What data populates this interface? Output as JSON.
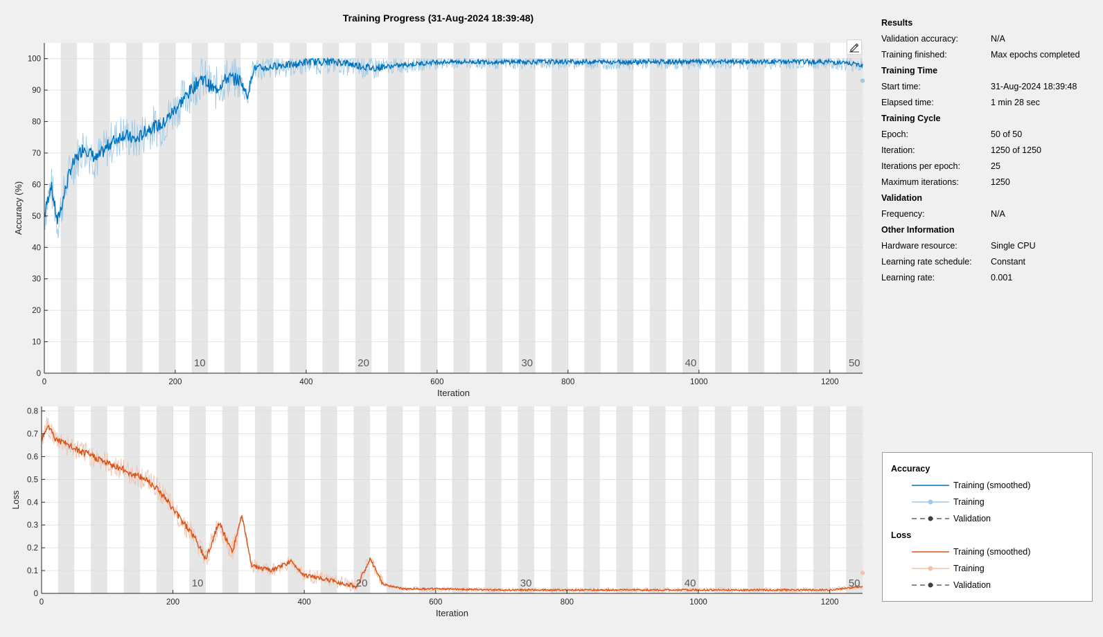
{
  "window": {
    "title": "Training Progress (31-Aug-2024 18:39:48)"
  },
  "colors": {
    "accuracy_smoothed": "#0072BD",
    "accuracy_raw": "#9fc9e6",
    "loss_smoothed": "#D95319",
    "loss_raw": "#f1c3ad",
    "validation": "#404040",
    "epoch_shade": "#e6e6e6"
  },
  "info": {
    "sections": [
      {
        "title": "Results",
        "rows": [
          {
            "label": "Validation accuracy:",
            "value": "N/A"
          },
          {
            "label": "Training finished:",
            "value": "Max epochs completed"
          }
        ]
      },
      {
        "title": "Training Time",
        "rows": [
          {
            "label": "Start time:",
            "value": "31-Aug-2024 18:39:48"
          },
          {
            "label": "Elapsed time:",
            "value": "1 min 28 sec"
          }
        ]
      },
      {
        "title": "Training Cycle",
        "rows": [
          {
            "label": "Epoch:",
            "value": "50 of 50"
          },
          {
            "label": "Iteration:",
            "value": "1250 of 1250"
          },
          {
            "label": "Iterations per epoch:",
            "value": "25"
          },
          {
            "label": "Maximum iterations:",
            "value": "1250"
          }
        ]
      },
      {
        "title": "Validation",
        "rows": [
          {
            "label": "Frequency:",
            "value": "N/A"
          }
        ]
      },
      {
        "title": "Other Information",
        "rows": [
          {
            "label": "Hardware resource:",
            "value": "Single CPU"
          },
          {
            "label": "Learning rate schedule:",
            "value": "Constant"
          },
          {
            "label": "Learning rate:",
            "value": "0.001"
          }
        ]
      }
    ]
  },
  "legend": {
    "accuracy_title": "Accuracy",
    "loss_title": "Loss",
    "items_accuracy": [
      "Training (smoothed)",
      "Training",
      "Validation"
    ],
    "items_loss": [
      "Training (smoothed)",
      "Training",
      "Validation"
    ]
  },
  "toolbar": {
    "edit_icon": "edit-pencil-icon"
  },
  "chart_data": [
    {
      "type": "line",
      "title": "",
      "xlabel": "Iteration",
      "ylabel": "Accuracy (%)",
      "xlim": [
        0,
        1250
      ],
      "ylim": [
        0,
        105
      ],
      "xticks": [
        0,
        200,
        400,
        600,
        800,
        1000,
        1200
      ],
      "yticks": [
        0,
        10,
        20,
        30,
        40,
        50,
        60,
        70,
        80,
        90,
        100
      ],
      "epoch_labels": [
        "10",
        "20",
        "30",
        "40",
        "50"
      ],
      "iterations_per_epoch": 25,
      "grid": true,
      "series": [
        {
          "name": "Training (smoothed)",
          "x": [
            0,
            10,
            20,
            40,
            60,
            80,
            100,
            120,
            140,
            160,
            180,
            200,
            220,
            240,
            260,
            280,
            300,
            310,
            320,
            340,
            360,
            380,
            400,
            450,
            500,
            600,
            700,
            800,
            900,
            1000,
            1100,
            1200,
            1250
          ],
          "y": [
            50,
            60,
            48,
            65,
            72,
            68,
            73,
            76,
            74,
            78,
            79,
            84,
            89,
            94,
            90,
            94,
            93,
            88,
            97,
            97,
            98,
            98,
            99,
            99,
            97,
            99,
            99,
            99,
            99,
            99,
            99,
            99,
            98
          ]
        },
        {
          "name": "Training",
          "x": [
            1250
          ],
          "y": [
            93
          ]
        }
      ]
    },
    {
      "type": "line",
      "title": "",
      "xlabel": "Iteration",
      "ylabel": "Loss",
      "xlim": [
        0,
        1250
      ],
      "ylim": [
        0,
        0.82
      ],
      "xticks": [
        0,
        200,
        400,
        600,
        800,
        1000,
        1200
      ],
      "yticks": [
        0,
        0.1,
        0.2,
        0.3,
        0.4,
        0.5,
        0.6,
        0.7,
        0.8
      ],
      "epoch_labels": [
        "10",
        "20",
        "30",
        "40",
        "50"
      ],
      "iterations_per_epoch": 25,
      "grid": true,
      "series": [
        {
          "name": "Training (smoothed)",
          "x": [
            0,
            10,
            20,
            40,
            60,
            80,
            100,
            120,
            140,
            160,
            180,
            200,
            230,
            250,
            270,
            290,
            305,
            320,
            350,
            380,
            400,
            420,
            450,
            480,
            500,
            520,
            550,
            600,
            700,
            800,
            900,
            1000,
            1100,
            1200,
            1250
          ],
          "y": [
            0.68,
            0.74,
            0.68,
            0.65,
            0.62,
            0.6,
            0.57,
            0.55,
            0.52,
            0.5,
            0.45,
            0.37,
            0.26,
            0.15,
            0.31,
            0.18,
            0.34,
            0.12,
            0.1,
            0.14,
            0.08,
            0.07,
            0.05,
            0.03,
            0.15,
            0.04,
            0.02,
            0.02,
            0.015,
            0.015,
            0.015,
            0.015,
            0.015,
            0.015,
            0.03
          ]
        },
        {
          "name": "Training",
          "x": [
            1250
          ],
          "y": [
            0.09
          ]
        }
      ]
    }
  ]
}
